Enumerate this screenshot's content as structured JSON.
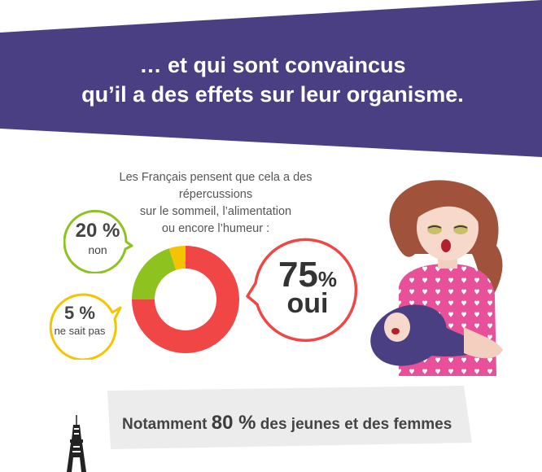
{
  "header": {
    "line1": "… et qui sont convaincus",
    "line2": "qu’il a des effets sur leur organisme.",
    "bg_color": "#4b3f84"
  },
  "intro": {
    "line1": "Les Français pensent que cela a des répercussions",
    "line2": "sur le sommeil, l’alimentation",
    "line3": "ou encore l’humeur :"
  },
  "chart_data": {
    "type": "pie",
    "categories": [
      "oui",
      "non",
      "ne sait pas"
    ],
    "values": [
      75,
      20,
      5
    ],
    "colors": [
      "#f04646",
      "#8dc21f",
      "#f5c400"
    ]
  },
  "bubbles": {
    "oui": {
      "value": "75",
      "unit": "%",
      "label": "oui",
      "color": "#f04646"
    },
    "non": {
      "value": "20",
      "unit": "%",
      "label": "non",
      "color": "#8dc21f"
    },
    "nsp": {
      "value": "5",
      "unit": "%",
      "label": "ne sait pas",
      "color": "#f5c400"
    }
  },
  "footer": {
    "prefix": "Notamment",
    "highlight": "80 %",
    "suffix": "des jeunes et des femmes"
  }
}
